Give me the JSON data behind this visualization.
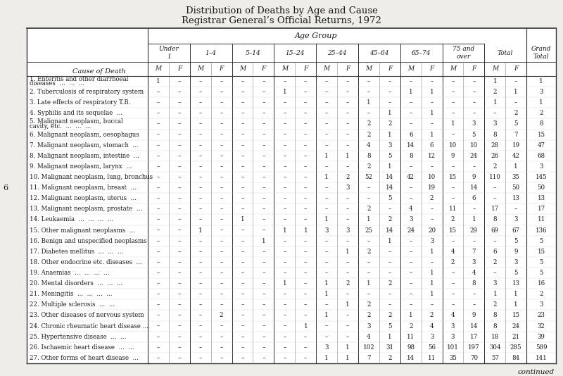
{
  "title1": "Distribution of Deaths by Age and Cause",
  "title2": "Registrar General’s Official Returns, 1972",
  "age_group_header": "Age Group",
  "cause_col_header": "Cause of Death",
  "side_label": "6",
  "continued_label": "continued",
  "age_group_names": [
    "Under\n1",
    "1–4",
    "5–14",
    "15–24",
    "25–44",
    "45–64",
    "65–74",
    "75 and\nover"
  ],
  "total_header": "Total",
  "grand_total_header": "Grand\nTotal",
  "mf_header": [
    "M",
    "F"
  ],
  "rows": [
    {
      "label": "1. Enteritis and other diarrhoeal\n   diseases  ...  ...  ...",
      "data": [
        "1",
        "–",
        "–",
        "–",
        "–",
        "–",
        "–",
        "–",
        "–",
        "–",
        "–",
        "–",
        "–",
        "–",
        "–",
        "–",
        "1",
        "–",
        "1"
      ]
    },
    {
      "label": "2. Tuberculosis of respiratory system",
      "data": [
        "–",
        "–",
        "–",
        "–",
        "–",
        "–",
        "1",
        "–",
        "–",
        "–",
        "–",
        "–",
        "1",
        "1",
        "–",
        "–",
        "2",
        "1",
        "3"
      ]
    },
    {
      "label": "3. Late effects of respiratory T.B.",
      "data": [
        "–",
        "–",
        "–",
        "–",
        "–",
        "–",
        "–",
        "–",
        "–",
        "–",
        "1",
        "–",
        "–",
        "–",
        "–",
        "–",
        "1",
        "–",
        "1"
      ]
    },
    {
      "label": "4. Syphilis and its sequelae  ...",
      "data": [
        "–",
        "–",
        "–",
        "–",
        "–",
        "–",
        "–",
        "–",
        "–",
        "–",
        "–",
        "1",
        "–",
        "1",
        "–",
        "–",
        "–",
        "2",
        "2"
      ]
    },
    {
      "label": "5. Malignant neoplasm, buccal\n   cavity, etc.  ...  ...  ...",
      "data": [
        "–",
        "–",
        "–",
        "–",
        "–",
        "–",
        "–",
        "–",
        "–",
        "–",
        "2",
        "2",
        "–",
        "–",
        "1",
        "3",
        "3",
        "5",
        "8"
      ]
    },
    {
      "label": "6. Malignant neoplasm, oesophagus",
      "data": [
        "–",
        "–",
        "–",
        "–",
        "–",
        "–",
        "–",
        "–",
        "–",
        "–",
        "2",
        "1",
        "6",
        "1",
        "–",
        "5",
        "8",
        "7",
        "15"
      ]
    },
    {
      "label": "7. Malignant neoplasm, stomach  ...",
      "data": [
        "–",
        "–",
        "–",
        "–",
        "–",
        "–",
        "–",
        "–",
        "–",
        "–",
        "4",
        "3",
        "14",
        "6",
        "10",
        "10",
        "28",
        "19",
        "47"
      ]
    },
    {
      "label": "8. Malignant neoplasm, intestine  ...",
      "data": [
        "–",
        "–",
        "–",
        "–",
        "–",
        "–",
        "–",
        "–",
        "1",
        "1",
        "8",
        "5",
        "8",
        "12",
        "9",
        "24",
        "26",
        "42",
        "68"
      ]
    },
    {
      "label": "9. Malignant neoplasm, larynx  ...",
      "data": [
        "–",
        "–",
        "–",
        "–",
        "–",
        "–",
        "–",
        "–",
        "–",
        "–",
        "2",
        "1",
        "–",
        "–",
        "–",
        "–",
        "2",
        "1",
        "3"
      ]
    },
    {
      "label": "10. Malignant neoplasm, lung, bronchus",
      "data": [
        "–",
        "–",
        "–",
        "–",
        "–",
        "–",
        "–",
        "–",
        "1",
        "2",
        "52",
        "14",
        "42",
        "10",
        "15",
        "9",
        "110",
        "35",
        "145"
      ]
    },
    {
      "label": "11. Malignant neoplasm, breast  ...",
      "data": [
        "–",
        "–",
        "–",
        "–",
        "–",
        "–",
        "–",
        "–",
        "–",
        "3",
        "–",
        "14",
        "–",
        "19",
        "–",
        "14",
        "–",
        "50",
        "50"
      ]
    },
    {
      "label": "12. Malignant neoplasm, uterus  ...",
      "data": [
        "–",
        "–",
        "–",
        "–",
        "–",
        "–",
        "–",
        "–",
        "–",
        "–",
        "–",
        "5",
        "–",
        "2",
        "–",
        "6",
        "–",
        "13",
        "13"
      ]
    },
    {
      "label": "13. Malignant neoplasm, prostate  ...",
      "data": [
        "–",
        "–",
        "–",
        "–",
        "–",
        "–",
        "–",
        "–",
        "–",
        "–",
        "2",
        "–",
        "4",
        "–",
        "11",
        "–",
        "17",
        "–",
        "17"
      ]
    },
    {
      "label": "14. Leukaemia  ...  ...  ...  ...",
      "data": [
        "–",
        "–",
        "–",
        "–",
        "1",
        "–",
        "–",
        "–",
        "1",
        "–",
        "1",
        "2",
        "3",
        "–",
        "2",
        "1",
        "8",
        "3",
        "11"
      ]
    },
    {
      "label": "15. Other malignant neoplasms  ...",
      "data": [
        "–",
        "–",
        "1",
        "–",
        "–",
        "–",
        "1",
        "1",
        "3",
        "3",
        "25",
        "14",
        "24",
        "20",
        "15",
        "29",
        "69",
        "67",
        "136"
      ]
    },
    {
      "label": "16. Benign and unspecified neoplasms",
      "data": [
        "–",
        "–",
        "–",
        "–",
        "–",
        "1",
        "–",
        "–",
        "–",
        "–",
        "–",
        "1",
        "–",
        "3",
        "–",
        "–",
        "–",
        "5",
        "5"
      ]
    },
    {
      "label": "17. Diabetes mellitus  ...  ...  ...",
      "data": [
        "–",
        "–",
        "–",
        "–",
        "–",
        "–",
        "–",
        "–",
        "–",
        "1",
        "2",
        "–",
        "–",
        "1",
        "4",
        "7",
        "6",
        "9",
        "15"
      ]
    },
    {
      "label": "18. Other endocrine etc. diseases  ...",
      "data": [
        "–",
        "–",
        "–",
        "–",
        "–",
        "–",
        "–",
        "–",
        "–",
        "–",
        "–",
        "–",
        "–",
        "–",
        "2",
        "3",
        "2",
        "3",
        "5"
      ]
    },
    {
      "label": "19. Anaemias  ...  ...  ...  ...",
      "data": [
        "–",
        "–",
        "–",
        "–",
        "–",
        "–",
        "–",
        "–",
        "–",
        "–",
        "–",
        "–",
        "–",
        "1",
        "–",
        "4",
        "–",
        "5",
        "5"
      ]
    },
    {
      "label": "20. Mental disorders  ...  ...  ...",
      "data": [
        "–",
        "–",
        "–",
        "–",
        "–",
        "–",
        "1",
        "–",
        "1",
        "2",
        "1",
        "2",
        "–",
        "1",
        "–",
        "8",
        "3",
        "13",
        "16"
      ]
    },
    {
      "label": "21. Meningitis  ...  ...  ...  ...",
      "data": [
        "–",
        "–",
        "–",
        "–",
        "–",
        "–",
        "–",
        "–",
        "1",
        "–",
        "–",
        "–",
        "–",
        "1",
        "–",
        "–",
        "1",
        "1",
        "2"
      ]
    },
    {
      "label": "22. Multiple sclerosis  ...  ...",
      "data": [
        "–",
        "–",
        "–",
        "–",
        "–",
        "–",
        "–",
        "–",
        "–",
        "1",
        "2",
        "–",
        "–",
        "–",
        "–",
        "–",
        "2",
        "1",
        "3"
      ]
    },
    {
      "label": "23. Other diseases of nervous system",
      "data": [
        "–",
        "–",
        "–",
        "2",
        "–",
        "–",
        "–",
        "–",
        "1",
        "–",
        "2",
        "2",
        "1",
        "2",
        "4",
        "9",
        "8",
        "15",
        "23"
      ]
    },
    {
      "label": "24. Chronic rheumatic heart disease ...",
      "data": [
        "–",
        "–",
        "–",
        "–",
        "–",
        "–",
        "–",
        "1",
        "–",
        "–",
        "3",
        "5",
        "2",
        "4",
        "3",
        "14",
        "8",
        "24",
        "32"
      ]
    },
    {
      "label": "25. Hypertensive disease  ...  ...",
      "data": [
        "–",
        "–",
        "–",
        "–",
        "–",
        "–",
        "–",
        "–",
        "–",
        "–",
        "4",
        "1",
        "11",
        "3",
        "3",
        "17",
        "18",
        "21",
        "39"
      ]
    },
    {
      "label": "26. Ischaemic heart disease  ...  ...",
      "data": [
        "–",
        "–",
        "–",
        "–",
        "–",
        "–",
        "–",
        "–",
        "3",
        "1",
        "102",
        "31",
        "98",
        "56",
        "101",
        "197",
        "304",
        "285",
        "589"
      ]
    },
    {
      "label": "27. Other forms of heart disease  ...",
      "data": [
        "–",
        "–",
        "–",
        "–",
        "–",
        "–",
        "–",
        "–",
        "1",
        "1",
        "7",
        "2",
        "14",
        "11",
        "35",
        "70",
        "57",
        "84",
        "141"
      ]
    }
  ],
  "bg_color": "#eeede8",
  "table_bg": "#ffffff",
  "text_color": "#1a1a1a"
}
